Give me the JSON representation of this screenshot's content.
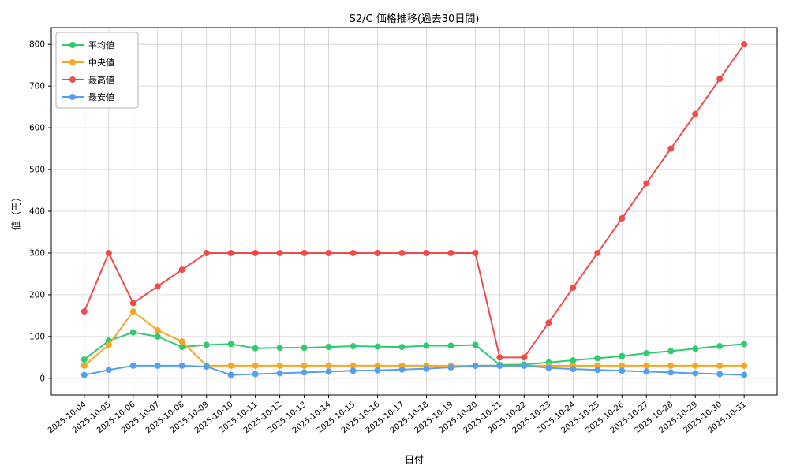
{
  "chart_data": {
    "type": "line",
    "title": "S2/C 価格推移(過去30日間)",
    "xlabel": "日付",
    "ylabel": "値（円）",
    "x": [
      "2025-10-04",
      "2025-10-05",
      "2025-10-06",
      "2025-10-07",
      "2025-10-08",
      "2025-10-09",
      "2025-10-10",
      "2025-10-11",
      "2025-10-12",
      "2025-10-13",
      "2025-10-14",
      "2025-10-15",
      "2025-10-16",
      "2025-10-17",
      "2025-10-18",
      "2025-10-19",
      "2025-10-20",
      "2025-10-21",
      "2025-10-22",
      "2025-10-23",
      "2025-10-24",
      "2025-10-25",
      "2025-10-26",
      "2025-10-27",
      "2025-10-28",
      "2025-10-29",
      "2025-10-30",
      "2025-10-31"
    ],
    "series": [
      {
        "key": "average",
        "name": "平均値",
        "color": "#2ecc71",
        "values": [
          45,
          90,
          110,
          100,
          75,
          80,
          82,
          72,
          73,
          73,
          75,
          77,
          76,
          75,
          78,
          78,
          80,
          32,
          33,
          38,
          43,
          48,
          53,
          60,
          65,
          71,
          77,
          82
        ]
      },
      {
        "key": "median",
        "name": "中央値",
        "color": "#f5a623",
        "values": [
          30,
          80,
          160,
          115,
          88,
          30,
          30,
          30,
          30,
          30,
          30,
          30,
          30,
          30,
          30,
          30,
          30,
          30,
          30,
          30,
          30,
          30,
          30,
          30,
          30,
          30,
          30,
          30
        ]
      },
      {
        "key": "max",
        "name": "最高値",
        "color": "#ef4b4b",
        "values": [
          160,
          300,
          180,
          220,
          260,
          300,
          300,
          300,
          300,
          300,
          300,
          300,
          300,
          300,
          300,
          300,
          300,
          50,
          50,
          133,
          217,
          300,
          383,
          467,
          550,
          633,
          717,
          800
        ]
      },
      {
        "key": "min",
        "name": "最安値",
        "color": "#54a0f0",
        "values": [
          8,
          20,
          30,
          30,
          30,
          28,
          8,
          10,
          12,
          14,
          16,
          18,
          19,
          21,
          23,
          26,
          30,
          30,
          30,
          25,
          22,
          20,
          18,
          16,
          14,
          12,
          10,
          8
        ]
      }
    ],
    "yticks": [
      0,
      100,
      200,
      300,
      400,
      500,
      600,
      700,
      800
    ],
    "ylim": [
      -40,
      840
    ],
    "grid": true,
    "legend_position": "upper left"
  }
}
